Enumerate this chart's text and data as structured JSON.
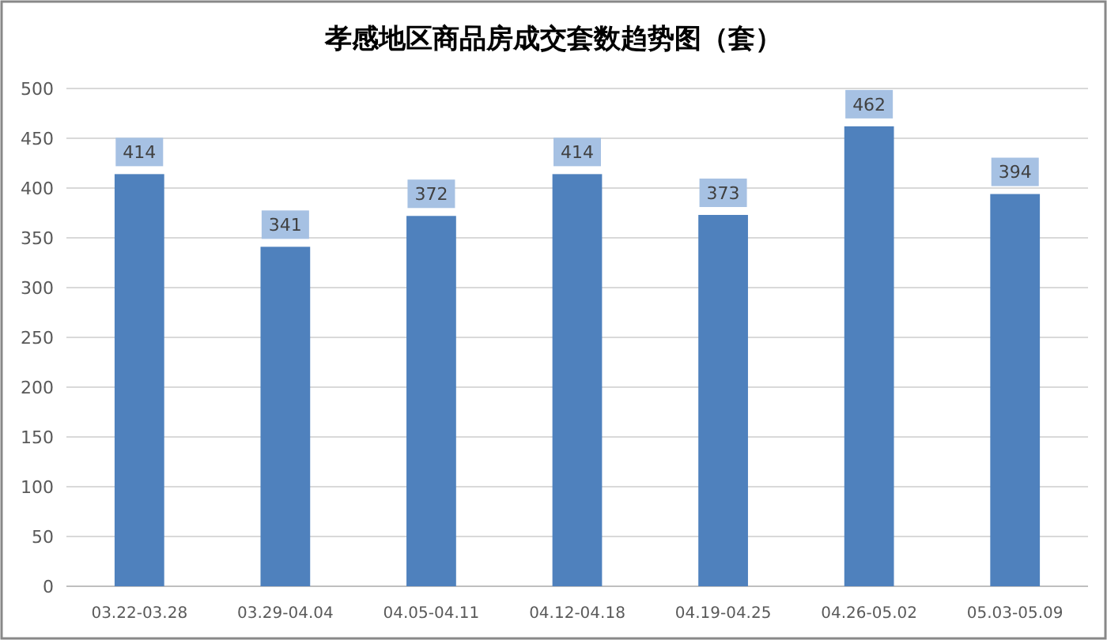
{
  "chart_data": {
    "type": "bar",
    "title": "孝感地区商品房成交套数趋势图（套）",
    "categories": [
      "03.22-03.28",
      "03.29-04.04",
      "04.05-04.11",
      "04.12-04.18",
      "04.19-04.25",
      "04.26-05.02",
      "05.03-05.09"
    ],
    "values": [
      414,
      341,
      372,
      414,
      373,
      462,
      394
    ],
    "color": "#4f81bd",
    "ylim": [
      0,
      500
    ],
    "yticks": [
      0,
      50,
      100,
      150,
      200,
      250,
      300,
      350,
      400,
      450,
      500
    ],
    "grid": "y",
    "data_labels": true
  }
}
